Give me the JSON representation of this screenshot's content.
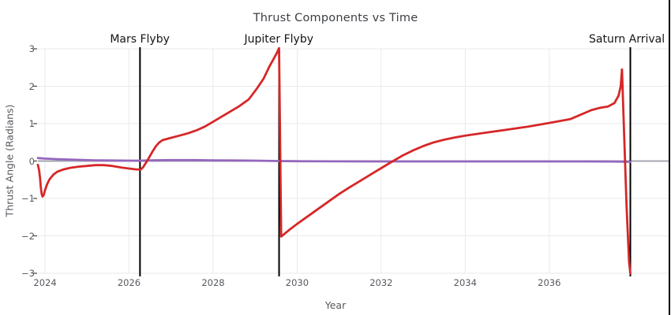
{
  "chart_data": {
    "type": "line",
    "title": "Thrust Components vs Time",
    "xlabel": "Year",
    "ylabel": "Thrust Angle (Radians)",
    "xlim": [
      2023.83,
      2038.86
    ],
    "ylim": [
      -3,
      3
    ],
    "grid": true,
    "legend_position": "none",
    "x_ticks": [
      {
        "v": 2024,
        "label": "2024"
      },
      {
        "v": 2026,
        "label": "2026"
      },
      {
        "v": 2028,
        "label": "2028"
      },
      {
        "v": 2030,
        "label": "2030"
      },
      {
        "v": 2032,
        "label": "2032"
      },
      {
        "v": 2034,
        "label": "2034"
      },
      {
        "v": 2036,
        "label": "2036"
      }
    ],
    "y_ticks": [
      {
        "v": -3,
        "label": "−3"
      },
      {
        "v": -2,
        "label": "−2"
      },
      {
        "v": -1,
        "label": "−1"
      },
      {
        "v": 0,
        "label": "0"
      },
      {
        "v": 1,
        "label": "1"
      },
      {
        "v": 2,
        "label": "2"
      },
      {
        "v": 3,
        "label": "3"
      }
    ],
    "annotations": [
      {
        "label": "Mars Flyby",
        "x": 2026.26
      },
      {
        "label": "Jupiter Flyby",
        "x": 2029.57
      },
      {
        "label": "Saturn Arrival",
        "x": 2037.93
      }
    ],
    "right_edge_line": {
      "x": 2038.86,
      "full_height": true
    },
    "colors": {
      "series1": "#d62728",
      "series2": "#9467bd",
      "vline": "#000000",
      "grid": "#e9e9ee",
      "zeroline": "#a6a6b0",
      "tick_text": "#56595e",
      "title_text": "#3c3f44",
      "annotation_text": "#151515"
    },
    "series": [
      {
        "name": "series-1",
        "color_key": "series1",
        "points": [
          [
            2023.83,
            -0.1
          ],
          [
            2023.86,
            -0.25
          ],
          [
            2023.88,
            -0.45
          ],
          [
            2023.9,
            -0.7
          ],
          [
            2023.92,
            -0.88
          ],
          [
            2023.94,
            -0.95
          ],
          [
            2023.97,
            -0.9
          ],
          [
            2024.0,
            -0.78
          ],
          [
            2024.05,
            -0.62
          ],
          [
            2024.1,
            -0.5
          ],
          [
            2024.2,
            -0.36
          ],
          [
            2024.3,
            -0.28
          ],
          [
            2024.45,
            -0.22
          ],
          [
            2024.6,
            -0.18
          ],
          [
            2024.8,
            -0.15
          ],
          [
            2025.0,
            -0.13
          ],
          [
            2025.2,
            -0.11
          ],
          [
            2025.4,
            -0.11
          ],
          [
            2025.6,
            -0.13
          ],
          [
            2025.8,
            -0.17
          ],
          [
            2026.0,
            -0.2
          ],
          [
            2026.15,
            -0.22
          ],
          [
            2026.27,
            -0.23
          ],
          [
            2026.33,
            -0.17
          ],
          [
            2026.4,
            -0.05
          ],
          [
            2026.48,
            0.1
          ],
          [
            2026.56,
            0.26
          ],
          [
            2026.64,
            0.4
          ],
          [
            2026.72,
            0.5
          ],
          [
            2026.8,
            0.56
          ],
          [
            2027.0,
            0.62
          ],
          [
            2027.2,
            0.68
          ],
          [
            2027.4,
            0.74
          ],
          [
            2027.6,
            0.82
          ],
          [
            2027.8,
            0.92
          ],
          [
            2028.0,
            1.05
          ],
          [
            2028.3,
            1.25
          ],
          [
            2028.6,
            1.45
          ],
          [
            2028.85,
            1.65
          ],
          [
            2029.05,
            1.95
          ],
          [
            2029.2,
            2.2
          ],
          [
            2029.35,
            2.55
          ],
          [
            2029.45,
            2.75
          ],
          [
            2029.52,
            2.9
          ],
          [
            2029.57,
            3.02
          ],
          [
            2029.62,
            -2.02
          ],
          [
            2029.8,
            -1.85
          ],
          [
            2030.0,
            -1.68
          ],
          [
            2030.25,
            -1.48
          ],
          [
            2030.5,
            -1.28
          ],
          [
            2030.75,
            -1.08
          ],
          [
            2031.0,
            -0.88
          ],
          [
            2031.25,
            -0.7
          ],
          [
            2031.5,
            -0.53
          ],
          [
            2031.75,
            -0.36
          ],
          [
            2032.0,
            -0.19
          ],
          [
            2032.25,
            -0.02
          ],
          [
            2032.5,
            0.14
          ],
          [
            2032.75,
            0.28
          ],
          [
            2033.0,
            0.4
          ],
          [
            2033.25,
            0.5
          ],
          [
            2033.5,
            0.57
          ],
          [
            2033.75,
            0.63
          ],
          [
            2034.0,
            0.68
          ],
          [
            2034.5,
            0.76
          ],
          [
            2035.0,
            0.84
          ],
          [
            2035.5,
            0.92
          ],
          [
            2036.0,
            1.02
          ],
          [
            2036.5,
            1.12
          ],
          [
            2037.0,
            1.36
          ],
          [
            2037.2,
            1.42
          ],
          [
            2037.4,
            1.46
          ],
          [
            2037.55,
            1.55
          ],
          [
            2037.65,
            1.75
          ],
          [
            2037.7,
            2.0
          ],
          [
            2037.73,
            2.45
          ],
          [
            2037.78,
            0.8
          ],
          [
            2037.84,
            -1.2
          ],
          [
            2037.9,
            -2.7
          ],
          [
            2037.93,
            -3.0
          ]
        ]
      },
      {
        "name": "series-2",
        "color_key": "series2",
        "points": [
          [
            2023.83,
            0.08
          ],
          [
            2024.0,
            0.065
          ],
          [
            2024.3,
            0.05
          ],
          [
            2024.6,
            0.04
          ],
          [
            2024.9,
            0.03
          ],
          [
            2025.2,
            0.02
          ],
          [
            2025.6,
            0.015
          ],
          [
            2026.0,
            0.01
          ],
          [
            2026.27,
            0.01
          ],
          [
            2026.5,
            0.02
          ],
          [
            2027.0,
            0.025
          ],
          [
            2027.5,
            0.025
          ],
          [
            2028.0,
            0.02
          ],
          [
            2028.5,
            0.015
          ],
          [
            2029.0,
            0.01
          ],
          [
            2029.57,
            0.0
          ],
          [
            2030.0,
            -0.005
          ],
          [
            2031.0,
            -0.008
          ],
          [
            2032.0,
            -0.01
          ],
          [
            2033.0,
            -0.01
          ],
          [
            2034.0,
            -0.01
          ],
          [
            2035.0,
            -0.01
          ],
          [
            2036.0,
            -0.01
          ],
          [
            2037.0,
            -0.01
          ],
          [
            2037.5,
            -0.012
          ],
          [
            2037.93,
            -0.02
          ]
        ]
      }
    ]
  }
}
